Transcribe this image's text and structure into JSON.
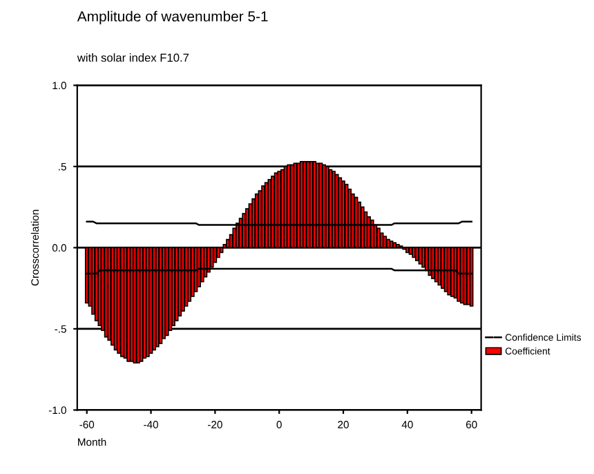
{
  "chart_data": {
    "type": "bar",
    "title": "Amplitude of wavenumber 5-1",
    "subtitle": "with solar index F10.7",
    "xlabel": "Month",
    "ylabel": "Crosscorrelation",
    "x": [
      -60,
      -59,
      -58,
      -57,
      -56,
      -55,
      -54,
      -53,
      -52,
      -51,
      -50,
      -49,
      -48,
      -47,
      -46,
      -45,
      -44,
      -43,
      -42,
      -41,
      -40,
      -39,
      -38,
      -37,
      -36,
      -35,
      -34,
      -33,
      -32,
      -31,
      -30,
      -29,
      -28,
      -27,
      -26,
      -25,
      -24,
      -23,
      -22,
      -21,
      -20,
      -19,
      -18,
      -17,
      -16,
      -15,
      -14,
      -13,
      -12,
      -11,
      -10,
      -9,
      -8,
      -7,
      -6,
      -5,
      -4,
      -3,
      -2,
      -1,
      0,
      1,
      2,
      3,
      4,
      5,
      6,
      7,
      8,
      9,
      10,
      11,
      12,
      13,
      14,
      15,
      16,
      17,
      18,
      19,
      20,
      21,
      22,
      23,
      24,
      25,
      26,
      27,
      28,
      29,
      30,
      31,
      32,
      33,
      34,
      35,
      36,
      37,
      38,
      39,
      40,
      41,
      42,
      43,
      44,
      45,
      46,
      47,
      48,
      49,
      50,
      51,
      52,
      53,
      54,
      55,
      56,
      57,
      58,
      59,
      60
    ],
    "series": [
      {
        "name": "Coefficient",
        "color": "#ff0000",
        "values": [
          -0.34,
          -0.36,
          -0.41,
          -0.45,
          -0.48,
          -0.51,
          -0.55,
          -0.57,
          -0.6,
          -0.63,
          -0.65,
          -0.67,
          -0.68,
          -0.7,
          -0.7,
          -0.71,
          -0.71,
          -0.7,
          -0.68,
          -0.67,
          -0.65,
          -0.63,
          -0.61,
          -0.59,
          -0.56,
          -0.54,
          -0.51,
          -0.48,
          -0.45,
          -0.42,
          -0.39,
          -0.36,
          -0.33,
          -0.3,
          -0.27,
          -0.24,
          -0.21,
          -0.18,
          -0.15,
          -0.12,
          -0.09,
          -0.06,
          -0.03,
          0.02,
          0.05,
          0.08,
          0.12,
          0.15,
          0.18,
          0.21,
          0.24,
          0.27,
          0.3,
          0.33,
          0.35,
          0.38,
          0.4,
          0.42,
          0.44,
          0.46,
          0.47,
          0.48,
          0.5,
          0.51,
          0.51,
          0.52,
          0.52,
          0.53,
          0.53,
          0.53,
          0.53,
          0.53,
          0.52,
          0.52,
          0.51,
          0.5,
          0.48,
          0.47,
          0.45,
          0.43,
          0.41,
          0.39,
          0.36,
          0.33,
          0.31,
          0.28,
          0.25,
          0.22,
          0.19,
          0.17,
          0.14,
          0.12,
          0.09,
          0.07,
          0.05,
          0.04,
          0.03,
          0.02,
          0.01,
          -0.01,
          -0.03,
          -0.04,
          -0.06,
          -0.08,
          -0.1,
          -0.12,
          -0.14,
          -0.17,
          -0.19,
          -0.21,
          -0.23,
          -0.25,
          -0.27,
          -0.29,
          -0.3,
          -0.31,
          -0.33,
          -0.34,
          -0.35,
          -0.35,
          -0.36
        ]
      },
      {
        "name": "Confidence Limits",
        "type": "line",
        "color": "#000000",
        "x": [
          -60,
          -58,
          -57,
          -26,
          -25,
          35,
          36,
          56,
          57,
          60
        ],
        "values": [
          0.16,
          0.16,
          0.15,
          0.15,
          0.14,
          0.14,
          0.15,
          0.15,
          0.16,
          0.16
        ]
      },
      {
        "type": "line",
        "color": "#000000",
        "x": [
          -60,
          -57,
          -56,
          -26,
          -25,
          35,
          36,
          55,
          56,
          60
        ],
        "values": [
          -0.16,
          -0.16,
          -0.14,
          -0.14,
          -0.13,
          -0.13,
          -0.14,
          -0.14,
          -0.16,
          -0.16
        ]
      }
    ],
    "xlim": [
      -63,
      63
    ],
    "xticks": [
      -60,
      -40,
      -20,
      0,
      20,
      40,
      60
    ],
    "ylim": [
      -1,
      1
    ],
    "yticks": [
      {
        "value": -1,
        "label": "-1.0"
      },
      {
        "value": -0.5,
        "label": "-.5"
      },
      {
        "value": 0,
        "label": "0.0"
      },
      {
        "value": 0.5,
        "label": ".5"
      },
      {
        "value": 1,
        "label": "1.0"
      }
    ],
    "grid": "y",
    "legend": "right"
  }
}
